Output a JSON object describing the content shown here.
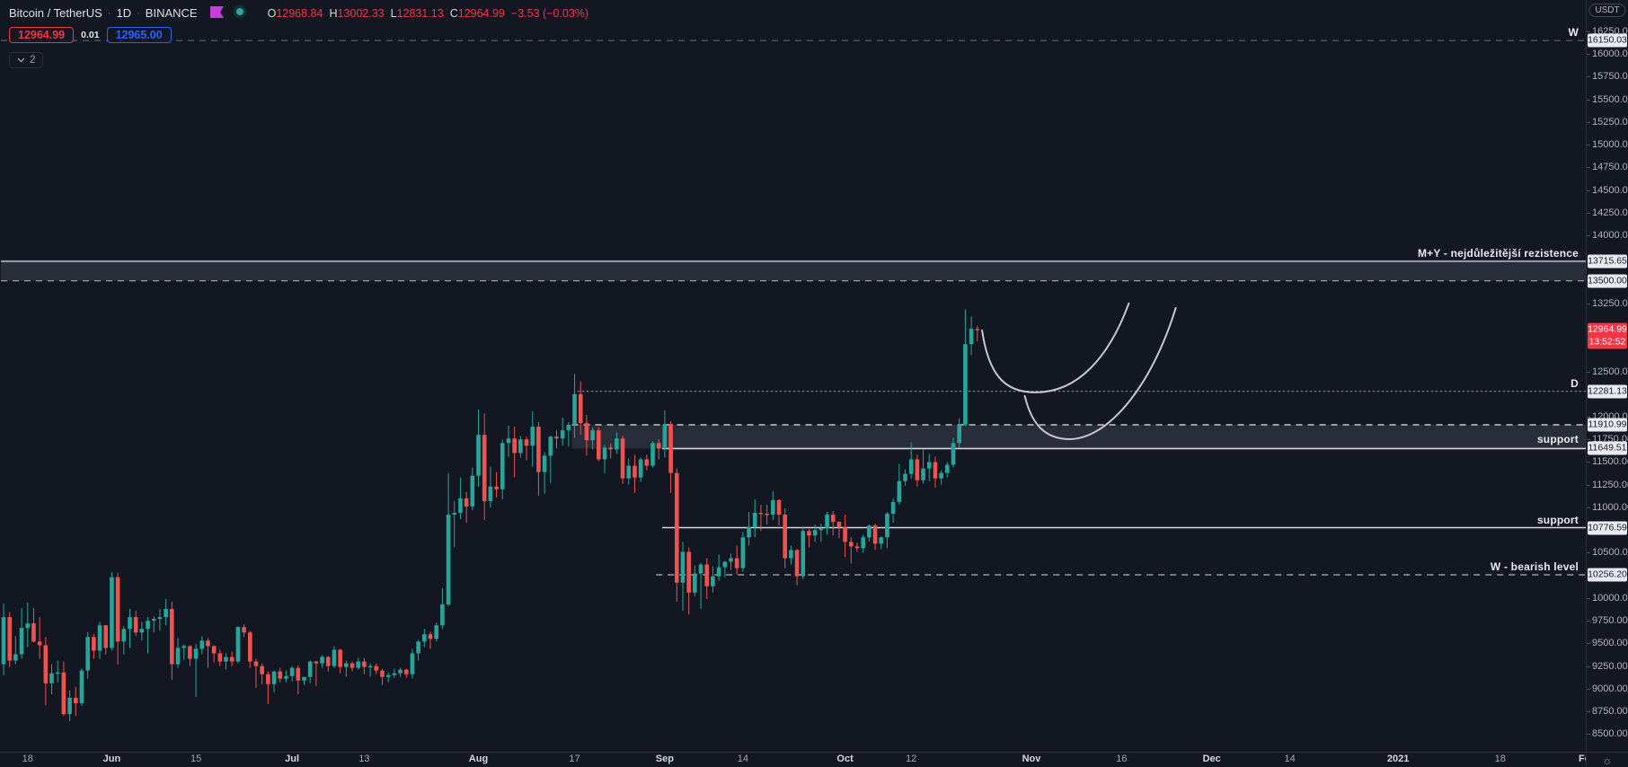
{
  "header": {
    "symbol": "Bitcoin / TetherUS",
    "sep": "·",
    "interval": "1D",
    "exchange": "BINANCE",
    "ohlc": [
      {
        "k": "O",
        "v": "12968.84"
      },
      {
        "k": "H",
        "v": "13002.33"
      },
      {
        "k": "L",
        "v": "12831.13"
      },
      {
        "k": "C",
        "v": "12964.99"
      }
    ],
    "change": "−3.53 (−0.03%)",
    "sell_price": "12964.99",
    "spread": "0.01",
    "buy_price": "12965.00",
    "collapse_count": "2"
  },
  "axis": {
    "currency": "USDT",
    "price_ticks": [
      "16250.00",
      "16000.00",
      "15750.00",
      "15500.00",
      "15250.00",
      "15000.00",
      "14750.00",
      "14500.00",
      "14250.00",
      "14000.00",
      "13250.00",
      "12500.00",
      "12000.00",
      "11750.00",
      "11500.00",
      "11250.00",
      "11000.00",
      "10500.00",
      "10000.00",
      "9750.00",
      "9500.00",
      "9250.00",
      "9000.00",
      "8750.00",
      "8500.00"
    ],
    "last_price": "12964.99",
    "countdown": "13:52:52",
    "time_ticks": [
      {
        "label": "18",
        "i": 4,
        "major": false
      },
      {
        "label": "Jun",
        "i": 18,
        "major": true
      },
      {
        "label": "15",
        "i": 32,
        "major": false
      },
      {
        "label": "Jul",
        "i": 48,
        "major": true
      },
      {
        "label": "13",
        "i": 60,
        "major": false
      },
      {
        "label": "Aug",
        "i": 79,
        "major": true
      },
      {
        "label": "17",
        "i": 95,
        "major": false
      },
      {
        "label": "Sep",
        "i": 110,
        "major": true
      },
      {
        "label": "14",
        "i": 123,
        "major": false
      },
      {
        "label": "Oct",
        "i": 140,
        "major": true
      },
      {
        "label": "12",
        "i": 151,
        "major": false
      },
      {
        "label": "Nov",
        "i": 171,
        "major": true
      },
      {
        "label": "16",
        "i": 186,
        "major": false
      },
      {
        "label": "Dec",
        "i": 201,
        "major": true
      },
      {
        "label": "14",
        "i": 214,
        "major": false
      },
      {
        "label": "2021",
        "i": 232,
        "major": true
      },
      {
        "label": "18",
        "i": 249,
        "major": false
      },
      {
        "label": "Fe",
        "i": 263,
        "major": true
      }
    ]
  },
  "levels": [
    {
      "id": "w-weekly-level",
      "label": "W",
      "type": "line",
      "style": "dashed",
      "price": 16150.03,
      "from": 0,
      "badges": [
        {
          "text": "16150.03",
          "price": 16150.03
        }
      ]
    },
    {
      "id": "my-resistance-zone",
      "label": "M+Y - nejdůležitější rezistence",
      "type": "zone",
      "top_style": "solid",
      "bottom_style": "dashed",
      "price_top": 13715.65,
      "price_bottom": 13500.0,
      "from": 0,
      "badges": [
        {
          "text": "13715.65",
          "price": 13715.65
        },
        {
          "text": "13500.00",
          "price": 13500.0
        }
      ]
    },
    {
      "id": "d-daily-level",
      "label": "D",
      "type": "line",
      "style": "dotted",
      "price": 12281.13,
      "from": 96,
      "badges": [
        {
          "text": "12281.13",
          "price": 12281.13
        }
      ]
    },
    {
      "id": "support-zone",
      "label": "support",
      "type": "zone",
      "label_inside": true,
      "top_style": "dashed",
      "bottom_style": "solid",
      "price_top": 11910.99,
      "price_bottom": 11649.51,
      "from": 95,
      "solid_from": 110,
      "badges": [
        {
          "text": "11910.99",
          "price": 11910.99
        },
        {
          "text": "11649.51",
          "price": 11649.51
        }
      ]
    },
    {
      "id": "support-line",
      "label": "support",
      "type": "line",
      "style": "solid",
      "price": 10776.59,
      "from": 110,
      "badges": [
        {
          "text": "10776.59",
          "price": 10776.59
        }
      ]
    },
    {
      "id": "w-bearish-level",
      "label": "W - bearish level",
      "type": "line",
      "style": "dashed",
      "price": 10256.2,
      "from": 109,
      "badges": [
        {
          "text": "10256.20",
          "price": 10256.2
        }
      ]
    }
  ],
  "chart_data": {
    "type": "candlestick",
    "title": "Bitcoin / TetherUS 1D BINANCE",
    "visible_price_range": [
      8295,
      16597
    ],
    "colors": {
      "up": "#26a69a",
      "down": "#ef5350",
      "bg": "#131722",
      "axis_text": "#b2b5be",
      "badge_bg": "#e9ebf0",
      "last_price_badge": "#f23645",
      "sell": "#f23645",
      "buy": "#2962ff",
      "flag_icon": "#c93cdd",
      "status_dot": "#2aa79b",
      "zone_fill": "rgba(145,150,165,0.18)",
      "line_bright": "#d4d7de",
      "line_mid": "#9aa0ab",
      "line_dim": "#5a5e69",
      "arc": "#c6c9d2"
    },
    "candles": [
      [
        9270,
        9940,
        9150,
        9790
      ],
      [
        9790,
        9845,
        9240,
        9310
      ],
      [
        9310,
        9580,
        9270,
        9380
      ],
      [
        9380,
        9890,
        9330,
        9670
      ],
      [
        9670,
        9950,
        9460,
        9720
      ],
      [
        9720,
        9890,
        9510,
        9520
      ],
      [
        9520,
        9790,
        9330,
        9480
      ],
      [
        9480,
        9570,
        8815,
        9060
      ],
      [
        9060,
        9270,
        8940,
        9170
      ],
      [
        9170,
        9310,
        9070,
        9180
      ],
      [
        9180,
        9300,
        8700,
        8720
      ],
      [
        8720,
        8980,
        8642,
        8900
      ],
      [
        8900,
        9020,
        8700,
        8840
      ],
      [
        8840,
        9225,
        8810,
        9200
      ],
      [
        9200,
        9625,
        9110,
        9570
      ],
      [
        9570,
        9605,
        9330,
        9420
      ],
      [
        9420,
        9740,
        9330,
        9700
      ],
      [
        9700,
        9700,
        9380,
        9450
      ],
      [
        9450,
        10288,
        9420,
        10230
      ],
      [
        10230,
        10280,
        9266,
        9520
      ],
      [
        9520,
        9690,
        9380,
        9660
      ],
      [
        9660,
        9880,
        9450,
        9790
      ],
      [
        9790,
        9860,
        9580,
        9620
      ],
      [
        9620,
        9740,
        9530,
        9660
      ],
      [
        9660,
        9790,
        9390,
        9750
      ],
      [
        9750,
        9800,
        9620,
        9770
      ],
      [
        9770,
        9880,
        9640,
        9790
      ],
      [
        9790,
        9990,
        9700,
        9880
      ],
      [
        9880,
        9960,
        9100,
        9270
      ],
      [
        9270,
        9560,
        9230,
        9450
      ],
      [
        9450,
        9490,
        9320,
        9470
      ],
      [
        9470,
        9480,
        9250,
        9330
      ],
      [
        9330,
        9490,
        8910,
        9440
      ],
      [
        9440,
        9580,
        9380,
        9530
      ],
      [
        9530,
        9560,
        9230,
        9470
      ],
      [
        9470,
        9480,
        9290,
        9390
      ],
      [
        9390,
        9430,
        9250,
        9300
      ],
      [
        9300,
        9390,
        9210,
        9350
      ],
      [
        9350,
        9410,
        9250,
        9300
      ],
      [
        9300,
        9690,
        9280,
        9680
      ],
      [
        9680,
        9710,
        9570,
        9620
      ],
      [
        9620,
        9640,
        9230,
        9300
      ],
      [
        9300,
        9330,
        9010,
        9250
      ],
      [
        9250,
        9280,
        9050,
        9160
      ],
      [
        9160,
        9190,
        8833,
        9050
      ],
      [
        9050,
        9200,
        8960,
        9190
      ],
      [
        9190,
        9230,
        9070,
        9110
      ],
      [
        9110,
        9200,
        9070,
        9140
      ],
      [
        9140,
        9250,
        9080,
        9230
      ],
      [
        9230,
        9260,
        8940,
        9090
      ],
      [
        9090,
        9130,
        9040,
        9130
      ],
      [
        9130,
        9310,
        9060,
        9300
      ],
      [
        9300,
        9310,
        9030,
        9280
      ],
      [
        9280,
        9370,
        9230,
        9350
      ],
      [
        9350,
        9360,
        9190,
        9250
      ],
      [
        9250,
        9470,
        9230,
        9430
      ],
      [
        9430,
        9440,
        9170,
        9240
      ],
      [
        9240,
        9310,
        9130,
        9280
      ],
      [
        9280,
        9300,
        9190,
        9230
      ],
      [
        9230,
        9340,
        9210,
        9300
      ],
      [
        9300,
        9340,
        9160,
        9240
      ],
      [
        9240,
        9280,
        9130,
        9250
      ],
      [
        9250,
        9280,
        9160,
        9200
      ],
      [
        9200,
        9220,
        9040,
        9130
      ],
      [
        9130,
        9180,
        9070,
        9150
      ],
      [
        9150,
        9220,
        9120,
        9170
      ],
      [
        9170,
        9230,
        9130,
        9210
      ],
      [
        9210,
        9220,
        9120,
        9160
      ],
      [
        9160,
        9440,
        9110,
        9390
      ],
      [
        9390,
        9540,
        9310,
        9520
      ],
      [
        9520,
        9660,
        9460,
        9600
      ],
      [
        9600,
        9630,
        9440,
        9550
      ],
      [
        9550,
        9730,
        9520,
        9700
      ],
      [
        9700,
        10110,
        9660,
        9930
      ],
      [
        9930,
        11380,
        9910,
        10920
      ],
      [
        10920,
        11070,
        10560,
        10940
      ],
      [
        10940,
        11330,
        10870,
        11100
      ],
      [
        11100,
        11170,
        10830,
        11010
      ],
      [
        11010,
        11440,
        10970,
        11350
      ],
      [
        11350,
        12080,
        11230,
        11800
      ],
      [
        11800,
        12035,
        10860,
        11070
      ],
      [
        11070,
        11450,
        11000,
        11230
      ],
      [
        11230,
        11390,
        11110,
        11200
      ],
      [
        11200,
        11750,
        11090,
        11710
      ],
      [
        11710,
        11900,
        11560,
        11760
      ],
      [
        11760,
        11890,
        11330,
        11600
      ],
      [
        11600,
        11790,
        11550,
        11750
      ],
      [
        11750,
        11780,
        11520,
        11680
      ],
      [
        11680,
        12060,
        11450,
        11890
      ],
      [
        11890,
        11940,
        11130,
        11390
      ],
      [
        11390,
        11610,
        11150,
        11570
      ],
      [
        11570,
        11790,
        11270,
        11780
      ],
      [
        11780,
        11850,
        11650,
        11760
      ],
      [
        11760,
        11990,
        11680,
        11850
      ],
      [
        11850,
        11940,
        11670,
        11910
      ],
      [
        11910,
        12473,
        11770,
        12250
      ],
      [
        12250,
        12390,
        11800,
        11930
      ],
      [
        11930,
        12020,
        11570,
        11740
      ],
      [
        11740,
        11880,
        11640,
        11850
      ],
      [
        11850,
        11880,
        11510,
        11530
      ],
      [
        11530,
        11690,
        11380,
        11660
      ],
      [
        11660,
        11710,
        11540,
        11640
      ],
      [
        11640,
        11830,
        11590,
        11760
      ],
      [
        11760,
        11790,
        11260,
        11320
      ],
      [
        11320,
        11540,
        11250,
        11460
      ],
      [
        11460,
        11580,
        11160,
        11330
      ],
      [
        11330,
        11550,
        11280,
        11530
      ],
      [
        11530,
        11580,
        11410,
        11460
      ],
      [
        11460,
        11730,
        11440,
        11710
      ],
      [
        11710,
        11750,
        11530,
        11650
      ],
      [
        11650,
        12070,
        11550,
        11920
      ],
      [
        11920,
        11950,
        11160,
        11380
      ],
      [
        11380,
        11430,
        9960,
        10170
      ],
      [
        10170,
        10620,
        9860,
        10510
      ],
      [
        10510,
        10560,
        9820,
        10060
      ],
      [
        10060,
        10360,
        10020,
        10270
      ],
      [
        10270,
        10390,
        9880,
        10370
      ],
      [
        10370,
        10440,
        9990,
        10130
      ],
      [
        10130,
        10350,
        10060,
        10240
      ],
      [
        10240,
        10480,
        10190,
        10340
      ],
      [
        10340,
        10410,
        10230,
        10400
      ],
      [
        10400,
        10490,
        10310,
        10440
      ],
      [
        10440,
        10580,
        10260,
        10330
      ],
      [
        10330,
        10730,
        10290,
        10670
      ],
      [
        10670,
        10950,
        10580,
        10780
      ],
      [
        10780,
        11090,
        10670,
        10940
      ],
      [
        10940,
        11030,
        10740,
        10930
      ],
      [
        10930,
        11030,
        10810,
        10920
      ],
      [
        10920,
        11180,
        10860,
        11080
      ],
      [
        11080,
        11090,
        10800,
        10920
      ],
      [
        10920,
        10990,
        10330,
        10440
      ],
      [
        10440,
        10580,
        10370,
        10530
      ],
      [
        10530,
        10540,
        10140,
        10240
      ],
      [
        10240,
        10790,
        10210,
        10740
      ],
      [
        10740,
        10760,
        10560,
        10690
      ],
      [
        10690,
        10810,
        10620,
        10750
      ],
      [
        10750,
        10820,
        10620,
        10770
      ],
      [
        10770,
        10950,
        10700,
        10920
      ],
      [
        10920,
        10960,
        10690,
        10840
      ],
      [
        10840,
        10850,
        10660,
        10780
      ],
      [
        10780,
        10920,
        10450,
        10620
      ],
      [
        10620,
        10670,
        10380,
        10570
      ],
      [
        10570,
        10610,
        10510,
        10550
      ],
      [
        10550,
        10700,
        10500,
        10670
      ],
      [
        10670,
        10810,
        10620,
        10800
      ],
      [
        10800,
        10820,
        10530,
        10600
      ],
      [
        10600,
        10680,
        10540,
        10670
      ],
      [
        10670,
        10950,
        10550,
        10930
      ],
      [
        10930,
        11100,
        10830,
        11060
      ],
      [
        11060,
        11480,
        11030,
        11290
      ],
      [
        11290,
        11420,
        11240,
        11370
      ],
      [
        11370,
        11720,
        11320,
        11530
      ],
      [
        11530,
        11580,
        11230,
        11300
      ],
      [
        11300,
        11640,
        11260,
        11430
      ],
      [
        11430,
        11590,
        11290,
        11500
      ],
      [
        11500,
        11560,
        11220,
        11320
      ],
      [
        11320,
        11410,
        11250,
        11380
      ],
      [
        11380,
        11500,
        11330,
        11470
      ],
      [
        11470,
        11770,
        11440,
        11710
      ],
      [
        11710,
        11985,
        11660,
        11913
      ],
      [
        11913,
        13184,
        11893,
        12801
      ],
      [
        12801,
        13107,
        12679,
        12970
      ],
      [
        12968.84,
        13002.33,
        12831.13,
        12964.99
      ]
    ],
    "arcs": [
      {
        "name": "cup-projection-1",
        "points": [
          [
            162.8,
            12952
          ],
          [
            164.0,
            12398
          ],
          [
            167.3,
            12269
          ],
          [
            171.7,
            12269
          ],
          [
            178.7,
            12269
          ],
          [
            183.9,
            12655
          ],
          [
            187.2,
            13250
          ]
        ]
      },
      {
        "name": "cup-projection-2",
        "points": [
          [
            169.9,
            12229
          ],
          [
            171.2,
            11872
          ],
          [
            173.8,
            11753
          ],
          [
            177.5,
            11753
          ],
          [
            184.5,
            11773
          ],
          [
            191.4,
            12417
          ],
          [
            195.0,
            13200
          ]
        ]
      }
    ]
  }
}
